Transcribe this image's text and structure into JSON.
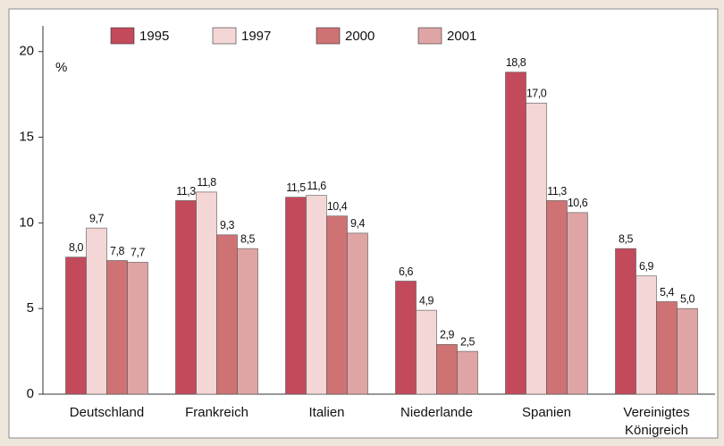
{
  "chart_data": {
    "type": "bar",
    "y_unit": "%",
    "categories": [
      "Deutschland",
      "Frankreich",
      "Italien",
      "Niederlande",
      "Spanien",
      "Vereinigtes\nKönigreich"
    ],
    "series": [
      {
        "name": "1995",
        "color": "#c34a5b",
        "values": [
          8.0,
          11.3,
          11.5,
          6.6,
          18.8,
          8.5
        ],
        "value_labels": [
          "8,0",
          "11,3",
          "11,5",
          "6,6",
          "18,8",
          "8,5"
        ]
      },
      {
        "name": "1997",
        "color": "#f3d6d5",
        "values": [
          9.7,
          11.8,
          11.6,
          4.9,
          17.0,
          6.9
        ],
        "value_labels": [
          "9,7",
          "11,8",
          "11,6",
          "4,9",
          "17,0",
          "6,9"
        ]
      },
      {
        "name": "2000",
        "color": "#cf7274",
        "values": [
          7.8,
          9.3,
          10.4,
          2.9,
          11.3,
          5.4
        ],
        "value_labels": [
          "7,8",
          "9,3",
          "10,4",
          "2,9",
          "11,3",
          "5,4"
        ]
      },
      {
        "name": "2001",
        "color": "#dfa5a5",
        "values": [
          7.7,
          8.5,
          9.4,
          2.5,
          10.6,
          5.0
        ],
        "value_labels": [
          "7,7",
          "8,5",
          "9,4",
          "2,5",
          "10,6",
          "5,0"
        ]
      }
    ],
    "ylim": [
      0,
      21.5
    ],
    "yticks": [
      0,
      5,
      10,
      15,
      20
    ],
    "grid": false,
    "legend": "top"
  }
}
